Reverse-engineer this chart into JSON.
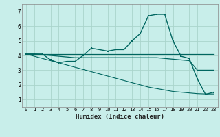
{
  "xlabel": "Humidex (Indice chaleur)",
  "background_color": "#c8eeea",
  "grid_color": "#aad4cc",
  "line_color": "#006660",
  "x_values": [
    0,
    1,
    2,
    3,
    4,
    5,
    6,
    7,
    8,
    9,
    10,
    11,
    12,
    13,
    14,
    15,
    16,
    17,
    18,
    19,
    20,
    21,
    22,
    23
  ],
  "ylim": [
    0.5,
    7.5
  ],
  "xlim": [
    -0.5,
    23.5
  ],
  "yticks": [
    1,
    2,
    3,
    4,
    5,
    6,
    7
  ],
  "xticks": [
    0,
    1,
    2,
    3,
    4,
    5,
    6,
    7,
    8,
    9,
    10,
    11,
    12,
    13,
    14,
    15,
    16,
    17,
    18,
    19,
    20,
    21,
    22,
    23
  ],
  "series_main": [
    4.1,
    4.1,
    4.1,
    3.7,
    3.5,
    3.6,
    3.6,
    4.0,
    4.5,
    4.4,
    4.3,
    4.4,
    4.4,
    5.0,
    5.5,
    6.7,
    6.8,
    6.8,
    5.0,
    3.95,
    3.8,
    2.4,
    1.35,
    1.5
  ],
  "series_flat": [
    4.1,
    4.1,
    4.1,
    4.1,
    4.1,
    4.1,
    4.1,
    4.1,
    4.1,
    4.1,
    4.1,
    4.1,
    4.1,
    4.1,
    4.1,
    4.1,
    4.1,
    4.1,
    4.1,
    4.1,
    4.1,
    4.1,
    4.1,
    4.1
  ],
  "series_decline1": [
    4.1,
    4.1,
    4.05,
    4.0,
    3.95,
    3.9,
    3.85,
    3.85,
    3.85,
    3.85,
    3.85,
    3.85,
    3.85,
    3.85,
    3.85,
    3.85,
    3.85,
    3.8,
    3.75,
    3.7,
    3.65,
    3.0,
    3.0,
    3.0
  ],
  "series_diagonal": [
    4.1,
    3.95,
    3.8,
    3.65,
    3.5,
    3.35,
    3.2,
    3.05,
    2.9,
    2.75,
    2.6,
    2.45,
    2.3,
    2.15,
    2.0,
    1.85,
    1.75,
    1.65,
    1.55,
    1.5,
    1.45,
    1.4,
    1.38,
    1.38
  ]
}
